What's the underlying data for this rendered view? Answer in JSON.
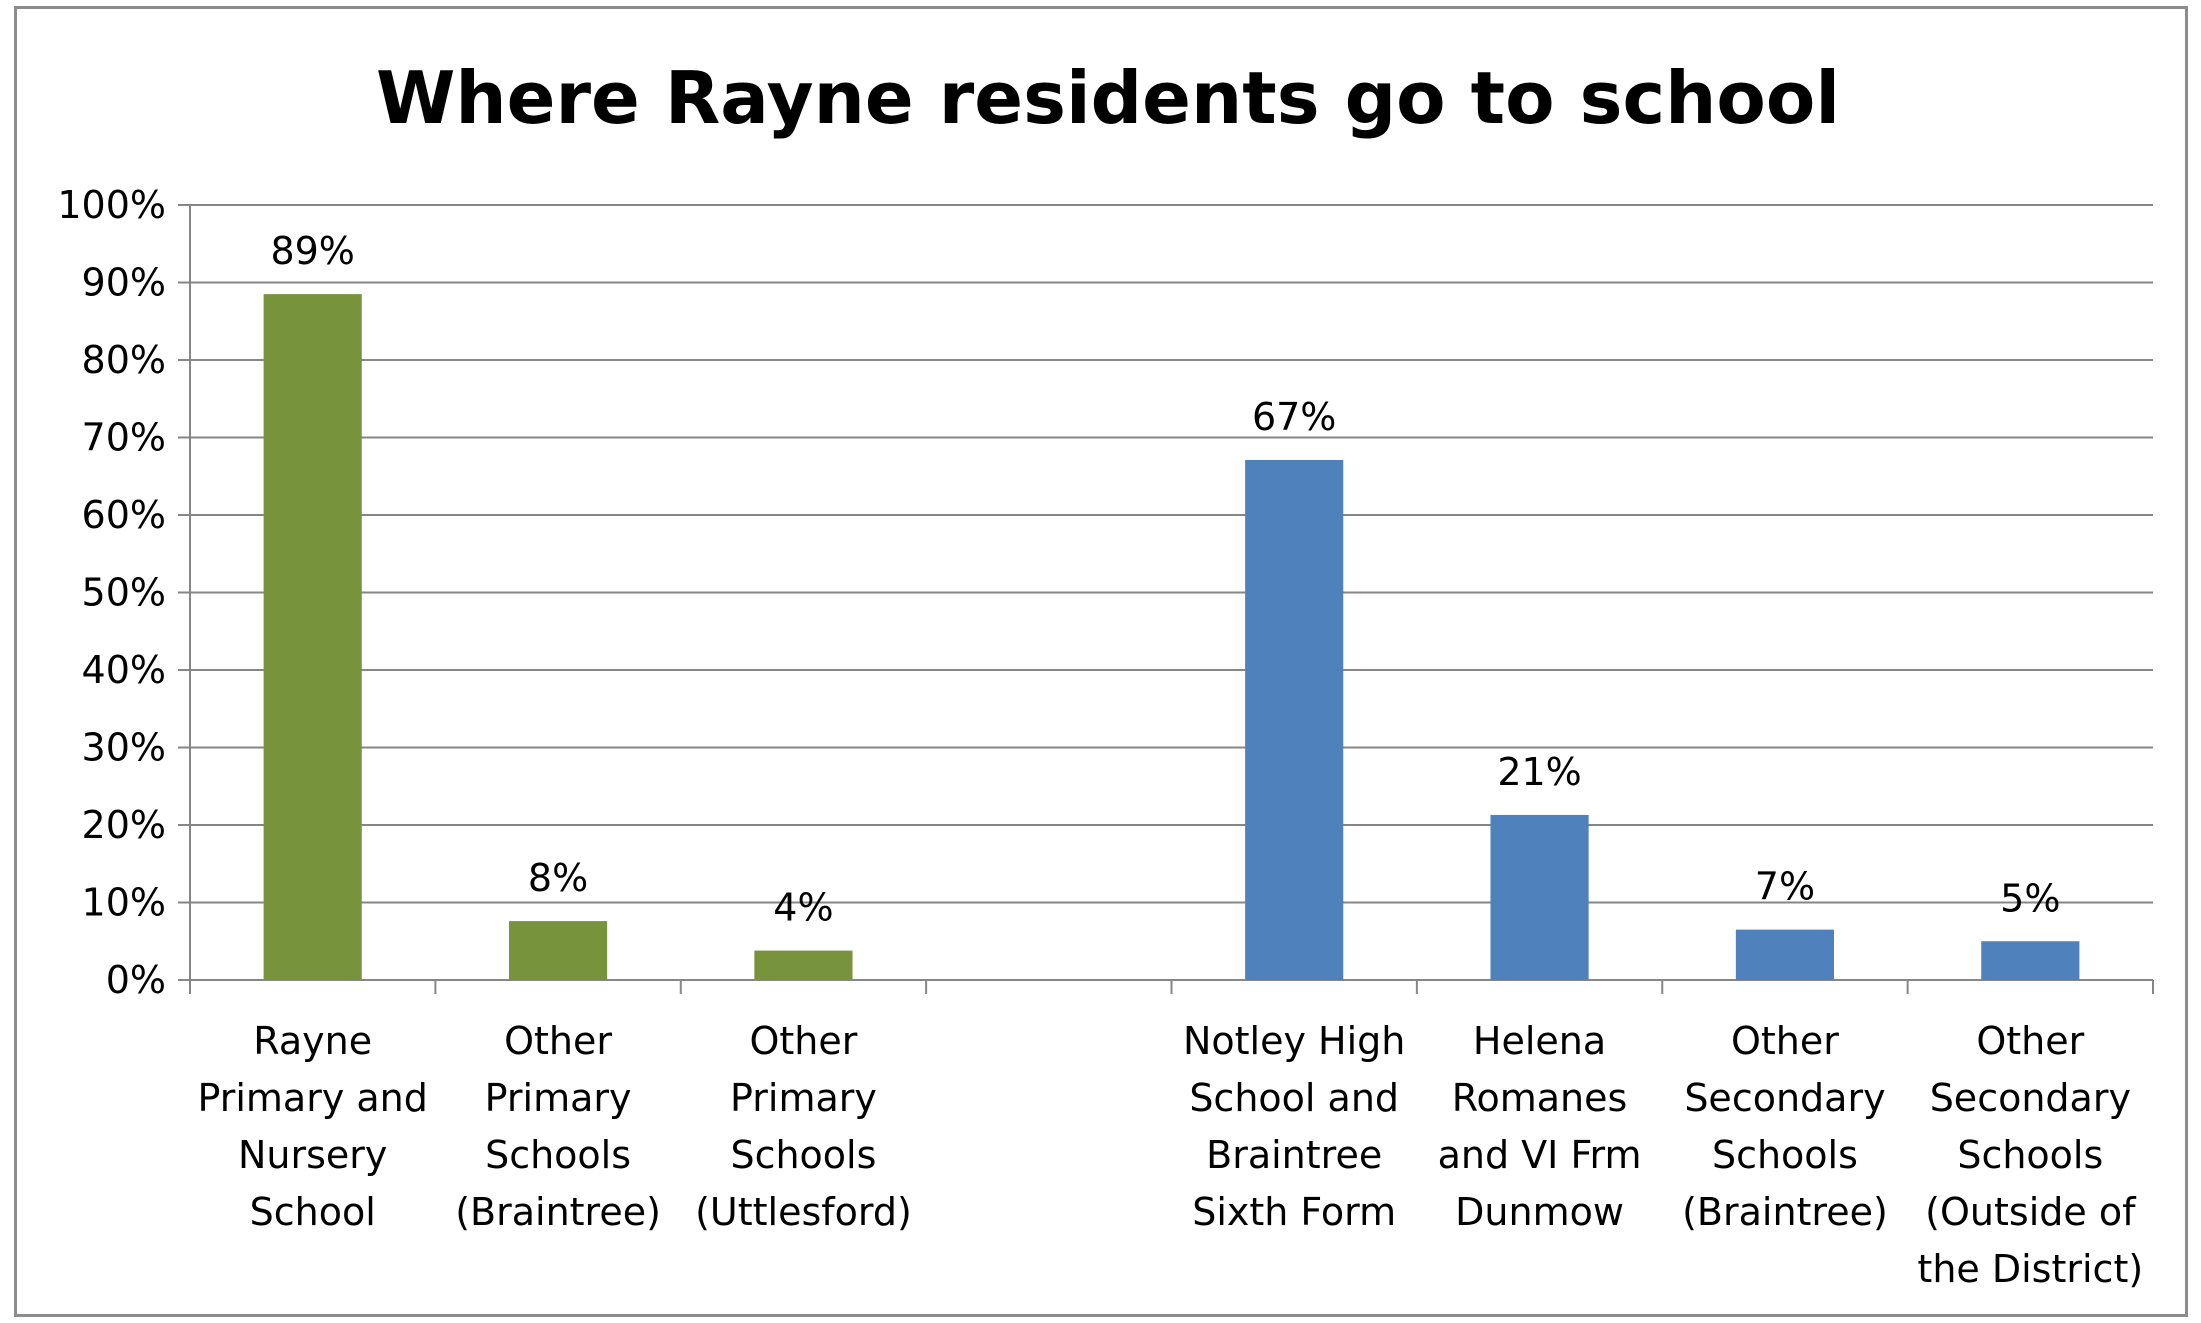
{
  "chart_data": {
    "type": "bar",
    "title": "Where Rayne residents go to school",
    "xlabel": "",
    "ylabel": "",
    "ylim": [
      0,
      100
    ],
    "yticks": [
      "0%",
      "10%",
      "20%",
      "30%",
      "40%",
      "50%",
      "60%",
      "70%",
      "80%",
      "90%",
      "100%"
    ],
    "grid": true,
    "legend": "none",
    "categories": [
      [
        "Rayne",
        "Primary and",
        "Nursery",
        "School"
      ],
      [
        "Other",
        "Primary",
        "Schools",
        "(Braintree)"
      ],
      [
        "Other",
        "Primary",
        "Schools",
        "(Uttlesford)"
      ],
      [],
      [
        "Notley High",
        "School and",
        "Braintree",
        "Sixth Form"
      ],
      [
        "Helena",
        "Romanes",
        "and VI Frm",
        "Dunmow"
      ],
      [
        "Other",
        "Secondary",
        "Schools",
        "(Braintree)"
      ],
      [
        "Other",
        "Secondary",
        "Schools",
        "(Outside of",
        "the District)"
      ]
    ],
    "values": [
      88.5,
      7.6,
      3.8,
      null,
      67.1,
      21.3,
      6.5,
      5.0
    ],
    "data_labels": [
      "89%",
      "8%",
      "4%",
      "",
      "67%",
      "21%",
      "7%",
      "5%"
    ],
    "colors": [
      "#77933c",
      "#77933c",
      "#77933c",
      null,
      "#4f81bd",
      "#4f81bd",
      "#4f81bd",
      "#4f81bd"
    ],
    "gridline_color": "#868686"
  }
}
